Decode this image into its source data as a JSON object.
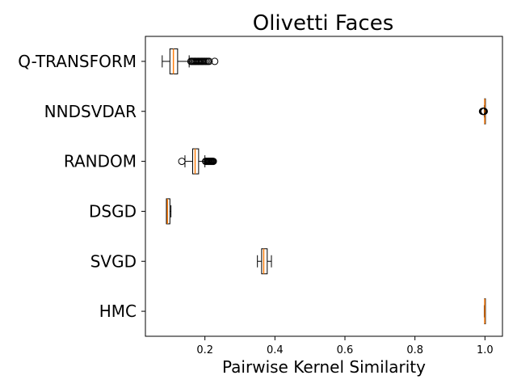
{
  "chart_data": {
    "type": "boxplot-horizontal",
    "title": "Olivetti Faces",
    "xlabel": "Pairwise Kernel Similarity",
    "ylabel": "",
    "xlim": [
      0.03,
      1.05
    ],
    "xticks": [
      0.2,
      0.4,
      0.6,
      0.8,
      1.0
    ],
    "xtick_labels": [
      "0.2",
      "0.4",
      "0.6",
      "0.8",
      "1.0"
    ],
    "grid": false,
    "box_face_color": "#ffffff",
    "box_edge_color": "#000000",
    "median_color": "#ff7f0e",
    "categories": [
      "HMC",
      "SVGD",
      "DSGD",
      "RANDOM",
      "NNDSVDAR",
      "Q-TRANSFORM"
    ],
    "series": [
      {
        "label": "HMC",
        "whislo": 0.998,
        "q1": 0.999,
        "median": 0.9995,
        "q3": 1.0,
        "whishi": 1.0,
        "fliers": []
      },
      {
        "label": "SVGD",
        "whislo": 0.35,
        "q1": 0.362,
        "median": 0.368,
        "q3": 0.378,
        "whishi": 0.39,
        "fliers": []
      },
      {
        "label": "DSGD",
        "whislo": 0.09,
        "q1": 0.09,
        "median": 0.093,
        "q3": 0.1,
        "whishi": 0.103,
        "fliers": []
      },
      {
        "label": "RANDOM",
        "whislo": 0.143,
        "q1": 0.165,
        "median": 0.172,
        "q3": 0.182,
        "whishi": 0.2,
        "fliers": [
          0.134,
          0.202,
          0.205,
          0.208,
          0.21,
          0.212,
          0.214,
          0.216,
          0.218,
          0.22,
          0.222,
          0.224
        ]
      },
      {
        "label": "NNDSVDAR",
        "whislo": 0.998,
        "q1": 0.999,
        "median": 0.9995,
        "q3": 1.0,
        "whishi": 1.0,
        "fliers": [
          0.993,
          0.994,
          0.995,
          0.996,
          0.997,
          0.998
        ]
      },
      {
        "label": "Q-TRANSFORM",
        "whislo": 0.078,
        "q1": 0.1,
        "median": 0.11,
        "q3": 0.122,
        "whishi": 0.155,
        "fliers": [
          0.16,
          0.163,
          0.166,
          0.169,
          0.172,
          0.175,
          0.178,
          0.181,
          0.184,
          0.187,
          0.19,
          0.193,
          0.196,
          0.2,
          0.204,
          0.208,
          0.212,
          0.228
        ]
      }
    ]
  }
}
